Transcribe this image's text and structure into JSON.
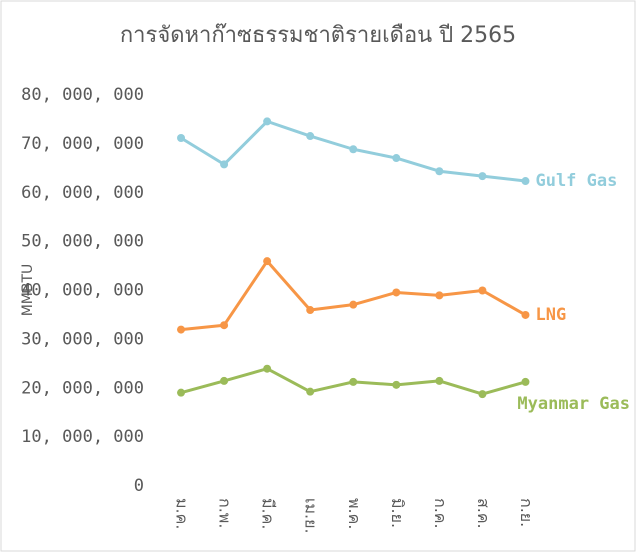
{
  "chart_data": {
    "type": "line",
    "title": "การจัดหาก๊าซธรรมชาติรายเดือน ปี 2565",
    "y_label": "MMBTU",
    "categories": [
      "ม.ค.",
      "ก.พ.",
      "มี.ค.",
      "เม.ย.",
      "พ.ค.",
      "มิ.ย.",
      "ก.ค.",
      "ส.ค.",
      "ก.ย."
    ],
    "series": [
      {
        "name": "Gulf Gas",
        "color": "#92cddc",
        "values": [
          71200000,
          65800000,
          74600000,
          71600000,
          68900000,
          67100000,
          64400000,
          63400000,
          62400000
        ]
      },
      {
        "name": "LNG",
        "color": "#f79646",
        "values": [
          32000000,
          32900000,
          46000000,
          36000000,
          37100000,
          39600000,
          39000000,
          40000000,
          35000000
        ]
      },
      {
        "name": "Myanmar Gas",
        "color": "#9bbb59",
        "values": [
          19100000,
          21500000,
          24000000,
          19300000,
          21300000,
          20700000,
          21500000,
          18800000,
          21300000
        ]
      }
    ],
    "ylim": [
      0,
      80000000
    ],
    "yticks": [
      0,
      {
        "value": 10000000,
        "label": "10, 000, 000"
      },
      {
        "value": 20000000,
        "label": "20, 000, 000"
      },
      {
        "value": 30000000,
        "label": "30, 000, 000"
      },
      {
        "value": 40000000,
        "label": "40, 000, 000"
      },
      {
        "value": 50000000,
        "label": "50, 000, 000"
      },
      {
        "value": 60000000,
        "label": "60, 000, 000"
      },
      {
        "value": 70000000,
        "label": "70, 000, 000"
      },
      {
        "value": 80000000,
        "label": "80, 000, 000"
      }
    ],
    "grid": false,
    "legend": "line-end"
  }
}
